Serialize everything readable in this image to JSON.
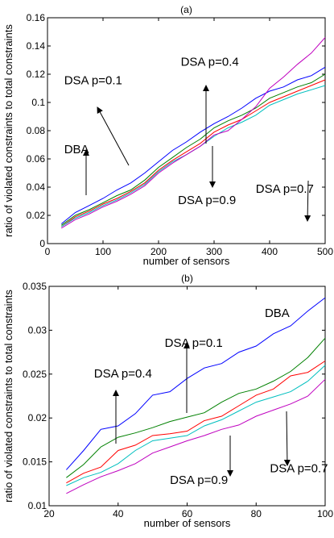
{
  "chart_data": [
    {
      "type": "line",
      "title": "(a)",
      "xlabel": "number of sensors",
      "ylabel": "ratio of violated constraints to total constraints",
      "xlim": [
        0,
        500
      ],
      "ylim": [
        0,
        0.16
      ],
      "xticks": [
        "0",
        "100",
        "200",
        "300",
        "400",
        "500"
      ],
      "yticks": [
        "0",
        "0.02",
        "0.04",
        "0.06",
        "0.08",
        "0.1",
        "0.12",
        "0.14",
        "0.16"
      ],
      "x": [
        25,
        50,
        75,
        100,
        125,
        150,
        175,
        200,
        225,
        250,
        275,
        300,
        325,
        350,
        375,
        400,
        425,
        450,
        475,
        500
      ],
      "series": [
        {
          "name": "DBA",
          "color": "#0000ff",
          "values": [
            0.014,
            0.022,
            0.027,
            0.032,
            0.038,
            0.043,
            0.05,
            0.058,
            0.066,
            0.072,
            0.079,
            0.085,
            0.09,
            0.096,
            0.103,
            0.108,
            0.111,
            0.116,
            0.119,
            0.125
          ]
        },
        {
          "name": "DSA p=0.4",
          "color": "#008000",
          "values": [
            0.013,
            0.02,
            0.024,
            0.029,
            0.034,
            0.038,
            0.045,
            0.054,
            0.061,
            0.068,
            0.074,
            0.082,
            0.087,
            0.091,
            0.096,
            0.103,
            0.107,
            0.111,
            0.114,
            0.12
          ]
        },
        {
          "name": "DSA p=0.7",
          "color": "#ff0000",
          "values": [
            0.012,
            0.019,
            0.023,
            0.028,
            0.032,
            0.037,
            0.043,
            0.052,
            0.059,
            0.065,
            0.071,
            0.079,
            0.084,
            0.088,
            0.094,
            0.1,
            0.104,
            0.108,
            0.112,
            0.116
          ]
        },
        {
          "name": "DSA p=0.9",
          "color": "#00bfbf",
          "values": [
            0.012,
            0.018,
            0.022,
            0.027,
            0.031,
            0.036,
            0.042,
            0.051,
            0.058,
            0.063,
            0.069,
            0.076,
            0.082,
            0.086,
            0.091,
            0.098,
            0.102,
            0.106,
            0.109,
            0.112
          ]
        },
        {
          "name": "DSA p=0.1",
          "color": "#bf00bf",
          "values": [
            0.011,
            0.017,
            0.021,
            0.026,
            0.03,
            0.035,
            0.041,
            0.05,
            0.057,
            0.063,
            0.069,
            0.077,
            0.08,
            0.088,
            0.097,
            0.11,
            0.118,
            0.127,
            0.135,
            0.146
          ]
        }
      ],
      "annotations": [
        {
          "text": "DSA p=0.1",
          "x": 30,
          "y": 0.113
        },
        {
          "text": "DSA p=0.4",
          "x": 240,
          "y": 0.126
        },
        {
          "text": "DBA",
          "x": 30,
          "y": 0.064
        },
        {
          "text": "DSA p=0.9",
          "x": 235,
          "y": 0.028
        },
        {
          "text": "DSA p=0.7",
          "x": 375,
          "y": 0.036
        }
      ]
    },
    {
      "type": "line",
      "title": "(b)",
      "xlabel": "number of sensors",
      "ylabel": "ratio of violated constraints to total constraints",
      "xlim": [
        20,
        100
      ],
      "ylim": [
        0.01,
        0.035
      ],
      "xticks": [
        "20",
        "40",
        "60",
        "80",
        "100"
      ],
      "yticks": [
        "0.01",
        "0.015",
        "0.02",
        "0.025",
        "0.03",
        "0.035"
      ],
      "x": [
        25,
        30,
        35,
        40,
        45,
        50,
        55,
        60,
        65,
        70,
        75,
        80,
        85,
        90,
        95,
        100
      ],
      "series": [
        {
          "name": "DBA",
          "color": "#0000ff",
          "values": [
            0.0141,
            0.0163,
            0.0187,
            0.0191,
            0.0205,
            0.0226,
            0.023,
            0.0245,
            0.0257,
            0.0262,
            0.0275,
            0.0282,
            0.0296,
            0.0305,
            0.0322,
            0.0337
          ]
        },
        {
          "name": "DSA p=0.4",
          "color": "#008000",
          "values": [
            0.0132,
            0.0147,
            0.0167,
            0.0178,
            0.0183,
            0.0189,
            0.0196,
            0.0201,
            0.0206,
            0.0218,
            0.0228,
            0.0233,
            0.0242,
            0.0253,
            0.0269,
            0.0291
          ]
        },
        {
          "name": "DSA p=0.7",
          "color": "#ff0000",
          "values": [
            0.0126,
            0.0137,
            0.0144,
            0.0163,
            0.0169,
            0.018,
            0.0182,
            0.0185,
            0.0197,
            0.0202,
            0.0214,
            0.0226,
            0.0233,
            0.0248,
            0.0252,
            0.0265
          ]
        },
        {
          "name": "DSA p=0.9",
          "color": "#00bfbf",
          "values": [
            0.0123,
            0.0132,
            0.0138,
            0.0148,
            0.0163,
            0.0174,
            0.0177,
            0.018,
            0.0191,
            0.0198,
            0.0208,
            0.0218,
            0.0224,
            0.023,
            0.0242,
            0.026
          ]
        },
        {
          "name": "DSA p=0.1",
          "color": "#bf00bf",
          "values": [
            0.0114,
            0.0124,
            0.0133,
            0.014,
            0.0148,
            0.016,
            0.0167,
            0.0174,
            0.018,
            0.0187,
            0.0192,
            0.0202,
            0.0209,
            0.0216,
            0.0225,
            0.0244
          ]
        }
      ],
      "annotations": [
        {
          "text": "DBA",
          "x": 82.5,
          "y": 0.0315
        },
        {
          "text": "DSA p=0.1",
          "x": 53.5,
          "y": 0.0281
        },
        {
          "text": "DSA p=0.4",
          "x": 33,
          "y": 0.0246
        },
        {
          "text": "DSA p=0.9",
          "x": 55,
          "y": 0.0125
        },
        {
          "text": "DSA p=0.7",
          "x": 84,
          "y": 0.0138
        }
      ]
    }
  ]
}
